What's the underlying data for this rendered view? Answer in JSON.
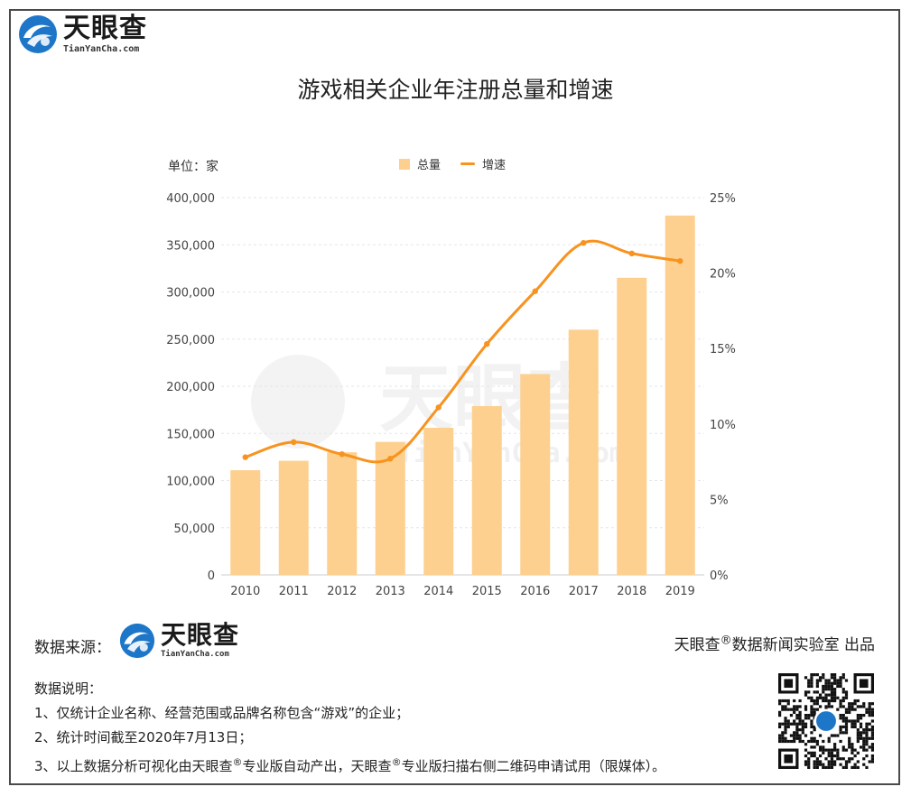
{
  "brand": {
    "name_cn": "天眼查",
    "name_en": "TianYanCha.com"
  },
  "chart_data": {
    "type": "bar",
    "title": "游戏相关企业年注册总量和增速",
    "unit_label": "单位：家",
    "categories": [
      "2010",
      "2011",
      "2012",
      "2013",
      "2014",
      "2015",
      "2016",
      "2017",
      "2018",
      "2019"
    ],
    "series": [
      {
        "name": "总量",
        "type": "bar",
        "axis": "left",
        "values": [
          111000,
          121000,
          130000,
          141000,
          156000,
          179000,
          213000,
          260000,
          315000,
          381000
        ],
        "color": "#fdd08f"
      },
      {
        "name": "增速",
        "type": "line",
        "axis": "right",
        "values": [
          7.8,
          8.8,
          8.0,
          7.7,
          11.1,
          15.3,
          18.8,
          22.0,
          21.3,
          20.8
        ],
        "unit": "%",
        "color": "#f7931e"
      }
    ],
    "y_left": {
      "min": 0,
      "max": 400000,
      "ticks": [
        "0",
        "50,000",
        "100,000",
        "150,000",
        "200,000",
        "250,000",
        "300,000",
        "350,000",
        "400,000"
      ]
    },
    "y_right": {
      "min": 0,
      "max": 25,
      "ticks": [
        "0%",
        "5%",
        "10%",
        "15%",
        "20%",
        "25%"
      ]
    },
    "grid": true,
    "legend_position": "top-center",
    "watermark": "天眼查 TianYanCha.com"
  },
  "footer": {
    "source_label": "数据来源：",
    "credit_prefix": "天眼查",
    "credit_mark": "®",
    "credit_suffix": "数据新闻实验室 出品",
    "notes_title": "数据说明：",
    "note1": "1、仅统计企业名称、经营范围或品牌名称包含“游戏”的企业；",
    "note2": "2、统计时间截至2020年7月13日；",
    "note3_a": "3、以上数据分析可视化由天眼查",
    "note3_mark1": "®",
    "note3_b": "专业版自动产出，天眼查",
    "note3_mark2": "®",
    "note3_c": "专业版扫描右侧二维码申请试用（限媒体）。"
  },
  "colors": {
    "bar": "#fdd08f",
    "line": "#f7931e",
    "logo_blue": "#1e76c8",
    "frame": "#4a4a4a"
  }
}
